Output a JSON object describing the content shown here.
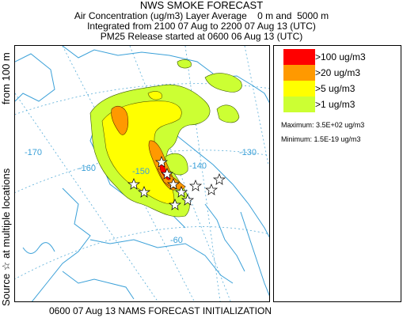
{
  "header": {
    "title": "NWS SMOKE FORECAST",
    "line2": "Air Concentration (ug/m3) Layer Average    0 m and  5000 m",
    "line3": "Integrated from 2100 07 Aug to 2200 07 Aug 13 (UTC)",
    "line4": "PM25 Release started at 0600 06 Aug 13 (UTC)"
  },
  "side_text": {
    "upper": "from  100 m",
    "lower": "Source ☆  at multiple locations"
  },
  "map": {
    "longitude_labels": [
      "-170",
      "-160",
      "-150",
      "-140",
      "-130",
      "-60"
    ],
    "source_marker_icon": "star-icon",
    "colors": {
      "coastline": "#3aa0d8",
      "gridline": "#5aaed8"
    }
  },
  "legend": {
    "items": [
      {
        "label": ">100 ug/m3",
        "color": "#ff0000"
      },
      {
        "label": ">20 ug/m3",
        "color": "#ff9900"
      },
      {
        "label": ">5 ug/m3",
        "color": "#ffff00"
      },
      {
        "label": ">1 ug/m3",
        "color": "#ccff33"
      }
    ],
    "maximum": "Maximum: 3.5E+02 ug/m3",
    "minimum": "Minimum: 1.5E-19 ug/m3"
  },
  "footer": "0600 07 Aug 13 NAMS FORECAST INITIALIZATION"
}
